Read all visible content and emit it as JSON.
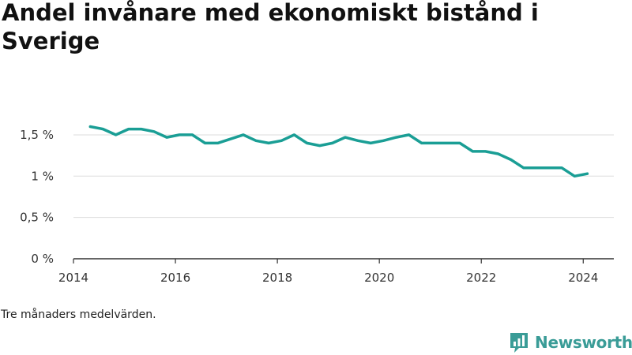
{
  "title": "Andel invånare med ekonomiskt bistånd i Sverige",
  "footnote": "Tre månaders medelvärden.",
  "brand": {
    "name": "Newsworthy",
    "icon": "newsworthy-logo-icon",
    "color": "#3a9c97"
  },
  "colors": {
    "line": "#1a9e95",
    "grid": "#dddddd",
    "axis": "#333333"
  },
  "chart_data": {
    "type": "line",
    "title": "Andel invånare med ekonomiskt bistånd i Sverige",
    "xlabel": "",
    "ylabel": "",
    "xlim": [
      2014,
      2024.6
    ],
    "ylim": [
      0,
      1.7
    ],
    "x_ticks": [
      2014,
      2016,
      2018,
      2020,
      2022,
      2024
    ],
    "y_ticks": [
      0,
      0.5,
      1,
      1.5
    ],
    "y_tick_labels": [
      "0 %",
      "0,5 %",
      "1 %",
      "1,5 %"
    ],
    "grid": "horizontal",
    "legend": "none",
    "series": [
      {
        "values": [
          [
            2014.33,
            1.6
          ],
          [
            2014.58,
            1.57
          ],
          [
            2014.83,
            1.5
          ],
          [
            2015.08,
            1.57
          ],
          [
            2015.33,
            1.57
          ],
          [
            2015.58,
            1.54
          ],
          [
            2015.83,
            1.47
          ],
          [
            2016.08,
            1.5
          ],
          [
            2016.33,
            1.5
          ],
          [
            2016.58,
            1.4
          ],
          [
            2016.83,
            1.4
          ],
          [
            2017.08,
            1.45
          ],
          [
            2017.33,
            1.5
          ],
          [
            2017.58,
            1.43
          ],
          [
            2017.83,
            1.4
          ],
          [
            2018.08,
            1.43
          ],
          [
            2018.33,
            1.5
          ],
          [
            2018.58,
            1.4
          ],
          [
            2018.83,
            1.37
          ],
          [
            2019.08,
            1.4
          ],
          [
            2019.33,
            1.47
          ],
          [
            2019.58,
            1.43
          ],
          [
            2019.83,
            1.4
          ],
          [
            2020.08,
            1.43
          ],
          [
            2020.33,
            1.47
          ],
          [
            2020.58,
            1.5
          ],
          [
            2020.83,
            1.4
          ],
          [
            2021.08,
            1.4
          ],
          [
            2021.33,
            1.4
          ],
          [
            2021.58,
            1.4
          ],
          [
            2021.83,
            1.3
          ],
          [
            2022.08,
            1.3
          ],
          [
            2022.33,
            1.27
          ],
          [
            2022.58,
            1.2
          ],
          [
            2022.83,
            1.1
          ],
          [
            2023.08,
            1.1
          ],
          [
            2023.33,
            1.1
          ],
          [
            2023.58,
            1.1
          ],
          [
            2023.83,
            1.0
          ],
          [
            2024.08,
            1.03
          ]
        ]
      }
    ]
  }
}
